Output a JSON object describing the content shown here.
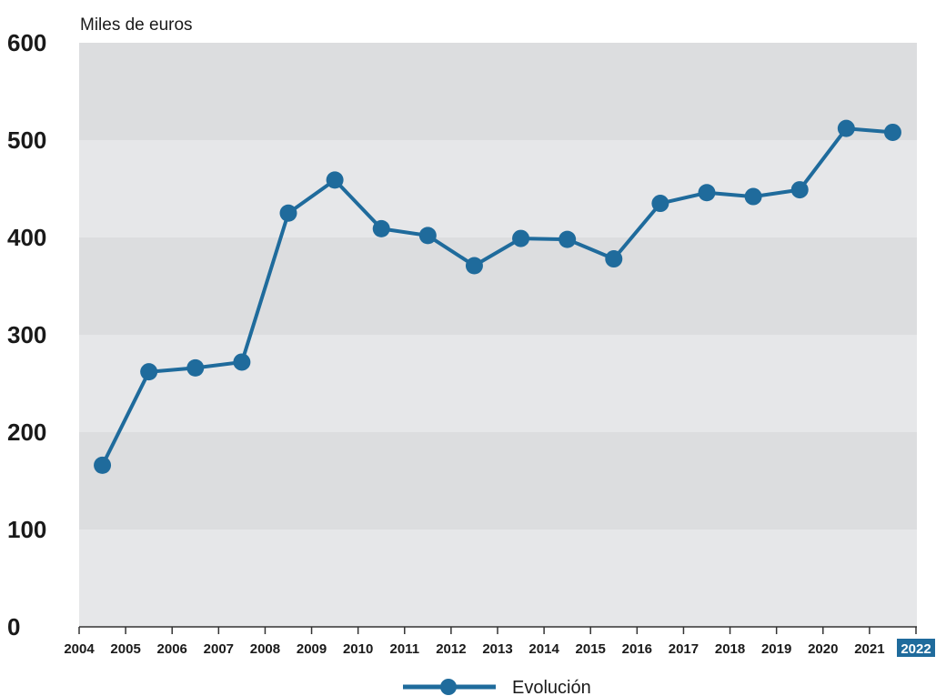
{
  "chart_data": {
    "type": "line",
    "ylabel": "Miles de euros",
    "xlim": [
      2004,
      2022
    ],
    "ylim": [
      0,
      600
    ],
    "x_ticks": [
      2004,
      2005,
      2006,
      2007,
      2008,
      2009,
      2010,
      2011,
      2012,
      2013,
      2014,
      2015,
      2016,
      2017,
      2018,
      2019,
      2020,
      2021,
      2022
    ],
    "y_ticks": [
      0,
      100,
      200,
      300,
      400,
      500,
      600
    ],
    "highlight_tick_index": 18,
    "grid": false,
    "background_bands": true,
    "legend": "bottom-center",
    "series": [
      {
        "name": "Evolución",
        "x": [
          2004.5,
          2005.5,
          2006.5,
          2007.5,
          2008.5,
          2009.5,
          2010.5,
          2011.5,
          2012.5,
          2013.5,
          2014.5,
          2015.5,
          2016.5,
          2017.5,
          2018.5,
          2019.5,
          2020.5,
          2021.5
        ],
        "y": [
          166,
          262,
          266,
          272,
          425,
          459,
          409,
          402,
          371,
          399,
          398,
          378,
          435,
          446,
          442,
          449,
          512,
          508
        ]
      }
    ]
  },
  "colors": {
    "series": "#1f6b9c",
    "highlight_tick_bg": "#1f6b9c",
    "band_light": "#e6e7e9",
    "band_dark": "#dcdddf",
    "axis": "#333333"
  }
}
